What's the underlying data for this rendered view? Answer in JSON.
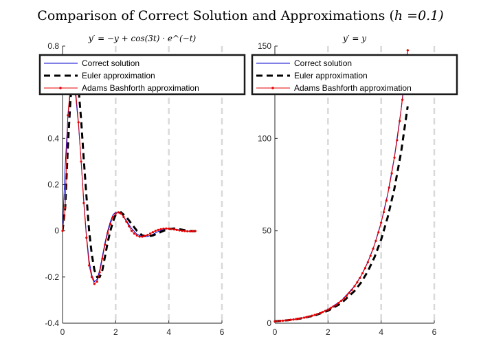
{
  "figure": {
    "title_text": "Comparison of Correct Solution and Approximations (",
    "title_math": "h =0.1)"
  },
  "chart_data": [
    {
      "type": "line",
      "title": "y′ = −y + cos(3t) · e^(−t)",
      "xlabel": "",
      "ylabel": "",
      "xlim": [
        0,
        6
      ],
      "ylim": [
        -0.4,
        0.8
      ],
      "xticks": [
        "0",
        "2",
        "4",
        "6"
      ],
      "yticks": [
        "-0.4",
        "-0.2",
        "0",
        "0.2",
        "0.4",
        "0.6",
        "0.8"
      ],
      "grid": "x-dashed",
      "legend": {
        "placement": "top",
        "entries": [
          "Correct solution",
          "Euler approximation",
          "Adams Bashforth approximation"
        ]
      },
      "series": [
        {
          "name": "Correct solution",
          "color": "#0000cc",
          "x": [
            0,
            0.1,
            0.2,
            0.3,
            0.4,
            0.5,
            0.6,
            0.7,
            0.8,
            0.9,
            1.0,
            1.1,
            1.2,
            1.3,
            1.4,
            1.5,
            1.6,
            1.7,
            1.8,
            1.9,
            2.0,
            2.2,
            2.4,
            2.6,
            2.8,
            3.0,
            3.2,
            3.4,
            3.6,
            3.8,
            4.0,
            4.2,
            4.4,
            4.6,
            4.8,
            5.0
          ],
          "y": [
            0,
            0.28,
            0.49,
            0.61,
            0.64,
            0.58,
            0.46,
            0.3,
            0.13,
            -0.02,
            -0.13,
            -0.19,
            -0.22,
            -0.21,
            -0.17,
            -0.11,
            -0.05,
            0.0,
            0.04,
            0.07,
            0.08,
            0.075,
            0.045,
            0.01,
            -0.015,
            -0.025,
            -0.025,
            -0.015,
            -0.003,
            0.006,
            0.01,
            0.008,
            0.004,
            0.0,
            -0.002,
            -0.002
          ]
        },
        {
          "name": "Euler approximation",
          "color": "#000000",
          "x": [
            0,
            0.1,
            0.2,
            0.3,
            0.4,
            0.5,
            0.6,
            0.7,
            0.8,
            0.9,
            1.0,
            1.1,
            1.2,
            1.3,
            1.4,
            1.5,
            1.6,
            1.7,
            1.8,
            1.9,
            2.0,
            2.2,
            2.4,
            2.6,
            2.8,
            3.0,
            3.2,
            3.4,
            3.6,
            3.8,
            4.0,
            4.2,
            4.4,
            4.6,
            4.8,
            5.0
          ],
          "y": [
            0,
            0.1,
            0.36,
            0.57,
            0.69,
            0.7,
            0.62,
            0.48,
            0.31,
            0.15,
            0.0,
            -0.1,
            -0.17,
            -0.2,
            -0.2,
            -0.17,
            -0.11,
            -0.05,
            0.0,
            0.04,
            0.07,
            0.08,
            0.06,
            0.03,
            0.0,
            -0.02,
            -0.025,
            -0.02,
            -0.01,
            0.0,
            0.008,
            0.01,
            0.007,
            0.003,
            -0.001,
            -0.002
          ]
        },
        {
          "name": "Adams Bashforth approximation",
          "color": "#e60000",
          "x": [
            0,
            0.1,
            0.2,
            0.3,
            0.4,
            0.5,
            0.6,
            0.7,
            0.8,
            0.9,
            1.0,
            1.1,
            1.2,
            1.3,
            1.4,
            1.5,
            1.6,
            1.7,
            1.8,
            1.9,
            2.0,
            2.1,
            2.2,
            2.3,
            2.4,
            2.5,
            2.6,
            2.7,
            2.8,
            2.9,
            3.0,
            3.1,
            3.2,
            3.3,
            3.4,
            3.5,
            3.6,
            3.7,
            3.8,
            3.9,
            4.0,
            4.1,
            4.2,
            4.3,
            4.4,
            4.5,
            4.6,
            4.7,
            4.8,
            4.9,
            5.0
          ],
          "y": [
            0,
            0.1,
            0.5,
            0.63,
            0.66,
            0.6,
            0.47,
            0.3,
            0.12,
            -0.03,
            -0.15,
            -0.2,
            -0.23,
            -0.22,
            -0.18,
            -0.12,
            -0.06,
            -0.01,
            0.03,
            0.06,
            0.075,
            0.08,
            0.075,
            0.06,
            0.04,
            0.02,
            0.0,
            -0.012,
            -0.02,
            -0.025,
            -0.025,
            -0.022,
            -0.018,
            -0.012,
            -0.006,
            0.0,
            0.004,
            0.007,
            0.009,
            0.01,
            0.009,
            0.008,
            0.006,
            0.004,
            0.002,
            0.0,
            -0.001,
            -0.002,
            -0.002,
            -0.002,
            -0.001
          ]
        }
      ]
    },
    {
      "type": "line",
      "title": "y′ = y",
      "xlabel": "",
      "ylabel": "",
      "xlim": [
        0,
        6
      ],
      "ylim": [
        0,
        150
      ],
      "xticks": [
        "0",
        "2",
        "4",
        "6"
      ],
      "yticks": [
        "0",
        "50",
        "100",
        "150"
      ],
      "grid": "x-dashed",
      "legend": {
        "placement": "top",
        "entries": [
          "Correct solution",
          "Euler approximation",
          "Adams Bashforth approximation"
        ]
      },
      "series": [
        {
          "name": "Correct solution",
          "color": "#0000cc",
          "x": [
            0,
            0.5,
            1.0,
            1.5,
            2.0,
            2.5,
            3.0,
            3.25,
            3.5,
            3.75,
            4.0,
            4.25,
            4.5,
            4.75,
            5.0
          ],
          "y": [
            1,
            1.65,
            2.72,
            4.48,
            7.39,
            12.18,
            20.09,
            25.79,
            33.12,
            42.52,
            54.6,
            70.11,
            90.02,
            115.58,
            148.41
          ]
        },
        {
          "name": "Euler approximation",
          "color": "#000000",
          "x": [
            0,
            0.5,
            1.0,
            1.5,
            2.0,
            2.5,
            3.0,
            3.25,
            3.5,
            3.75,
            4.0,
            4.25,
            4.5,
            4.75,
            5.0
          ],
          "y": [
            1,
            1.61,
            2.59,
            4.18,
            6.73,
            10.83,
            17.45,
            22.1,
            28.1,
            35.7,
            45.26,
            57.5,
            72.89,
            92.5,
            117.39
          ]
        },
        {
          "name": "Adams Bashforth approximation",
          "color": "#e60000",
          "x": [
            0,
            0.1,
            0.2,
            0.3,
            0.4,
            0.5,
            0.6,
            0.7,
            0.8,
            0.9,
            1.0,
            1.1,
            1.2,
            1.3,
            1.4,
            1.5,
            1.6,
            1.7,
            1.8,
            1.9,
            2.0,
            2.1,
            2.2,
            2.3,
            2.4,
            2.5,
            2.6,
            2.7,
            2.8,
            2.9,
            3.0,
            3.1,
            3.2,
            3.3,
            3.4,
            3.5,
            3.6,
            3.7,
            3.8,
            3.9,
            4.0,
            4.1,
            4.2,
            4.3,
            4.4,
            4.5,
            4.6,
            4.7,
            4.8,
            4.9,
            5.0
          ],
          "y": [
            1,
            1.1,
            1.22,
            1.35,
            1.49,
            1.65,
            1.82,
            2.01,
            2.22,
            2.45,
            2.71,
            3.0,
            3.31,
            3.66,
            4.05,
            4.47,
            4.94,
            5.46,
            6.03,
            6.67,
            7.37,
            8.14,
            9.0,
            9.94,
            10.99,
            12.14,
            13.42,
            14.83,
            16.39,
            18.11,
            20.01,
            22.12,
            24.44,
            27.01,
            29.85,
            32.99,
            36.46,
            40.29,
            44.52,
            49.2,
            54.37,
            60.09,
            66.4,
            73.38,
            81.09,
            89.61,
            99.03,
            109.44,
            120.94,
            133.65,
            147.7
          ]
        }
      ]
    }
  ]
}
